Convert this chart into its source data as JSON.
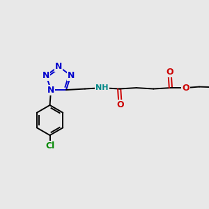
{
  "bg_color": "#e8e8e8",
  "bond_color": "#000000",
  "N_color": "#0000cc",
  "O_color": "#cc0000",
  "Cl_color": "#008800",
  "NH_color": "#008888",
  "figsize": [
    3.0,
    3.0
  ],
  "dpi": 100,
  "xlim": [
    0,
    10
  ],
  "ylim": [
    0,
    10
  ]
}
